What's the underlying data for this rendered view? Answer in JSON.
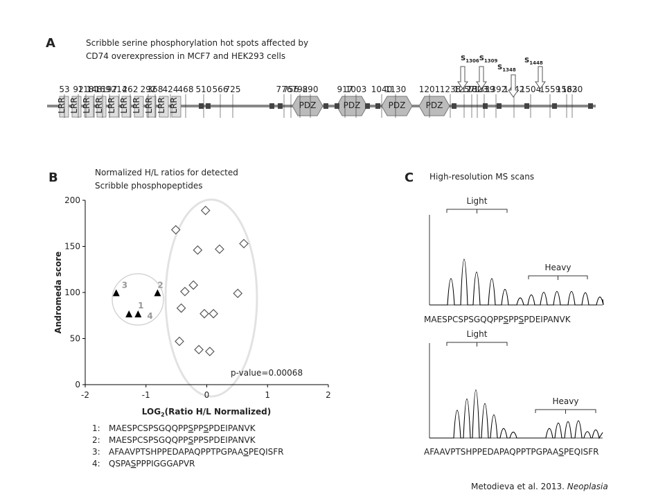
{
  "panel_a": {
    "letter": "A",
    "caption": [
      "Scribble serine phosphorylation hot spots affected by",
      "CD74 overexpression in MCF7 and HEK293 cells"
    ],
    "sites": [
      {
        "parts": [
          "S",
          "1306",
          "S",
          "1309"
        ]
      },
      {
        "parts": [
          "S",
          "1348"
        ]
      },
      {
        "parts": [
          "S",
          "1448"
        ]
      }
    ],
    "domains": {
      "lrr": "LRR",
      "pdz": "PDZ"
    },
    "residues": [
      "53",
      "92",
      "118",
      "148",
      "169",
      "197",
      "214",
      "262",
      "292",
      "368",
      "424",
      "468",
      "510",
      "566",
      "725",
      "776",
      "756",
      "792",
      "890",
      "917",
      "1003",
      "1040",
      "1130",
      "1201",
      "1238",
      "1257",
      "1282",
      "1303",
      "1339",
      "1392",
      "1442",
      "1504",
      "1559",
      "1582",
      "1630"
    ]
  },
  "chart_data": {
    "type": "scatter",
    "letter": "B",
    "title": [
      "Normalized H/L ratios for detected",
      "Scribble phosphopeptides"
    ],
    "y_label": "Andromeda score",
    "x_label": {
      "main": "LOG",
      "sub": "2",
      "rest": "(Ratio H/L Normalized)"
    },
    "xlim": [
      -2,
      2
    ],
    "ylim": [
      0,
      200
    ],
    "xticks": [
      -2,
      -1,
      0,
      1,
      2
    ],
    "yticks": [
      0,
      50,
      100,
      150,
      200
    ],
    "series": [
      {
        "marker": "diamond",
        "color": "#555555",
        "x": [
          -0.51,
          -0.02,
          -0.15,
          0.21,
          0.61,
          -0.22,
          -0.36,
          0.51,
          -0.42,
          -0.04,
          0.11,
          -0.45,
          -0.13,
          0.05
        ],
        "values": [
          168,
          189,
          146,
          147,
          153,
          108,
          101,
          99,
          83,
          77,
          77,
          47,
          38,
          36
        ]
      },
      {
        "marker": "triangle",
        "color": "#000000",
        "x": [
          -1.49,
          -0.81,
          -1.28,
          -1.13
        ],
        "values": [
          99,
          99,
          76,
          76
        ],
        "point_labels": [
          "3",
          "2",
          "1",
          "4"
        ]
      }
    ],
    "annotation": "p-value=0.00068",
    "peptides": [
      {
        "label": "1:",
        "parts": [
          "MAESPCSPSGQQPP",
          "S",
          "PP",
          "S",
          "PDEIPANVK"
        ]
      },
      {
        "label": "2:",
        "parts": [
          "MAESPCSPSGQQPP",
          "S",
          "PPSPDEIPANVK"
        ]
      },
      {
        "label": "3:",
        "parts": [
          "AFAAVPTSHPPEDAPAQPPTPGPAA",
          "S",
          "PEQISFR"
        ]
      },
      {
        "label": "4:",
        "parts": [
          "QSPA",
          "S",
          "PPPIGGGAPVR"
        ]
      }
    ]
  },
  "panel_c": {
    "letter": "C",
    "title": "High-resolution MS scans",
    "spectra": [
      {
        "light": "Light",
        "heavy": "Heavy",
        "parts": [
          "MAESPCSPSGQQPP",
          "S",
          "PP",
          "S",
          "PDEIPANVK"
        ]
      },
      {
        "light": "Light",
        "heavy": "Heavy",
        "parts": [
          "AFAAVPTSHPPEDAPAQPPTPGPAA",
          "S",
          "PEQISFR"
        ]
      }
    ]
  },
  "citation": {
    "text": "Metodieva et al. 2013. ",
    "journal": "Neoplasia"
  }
}
